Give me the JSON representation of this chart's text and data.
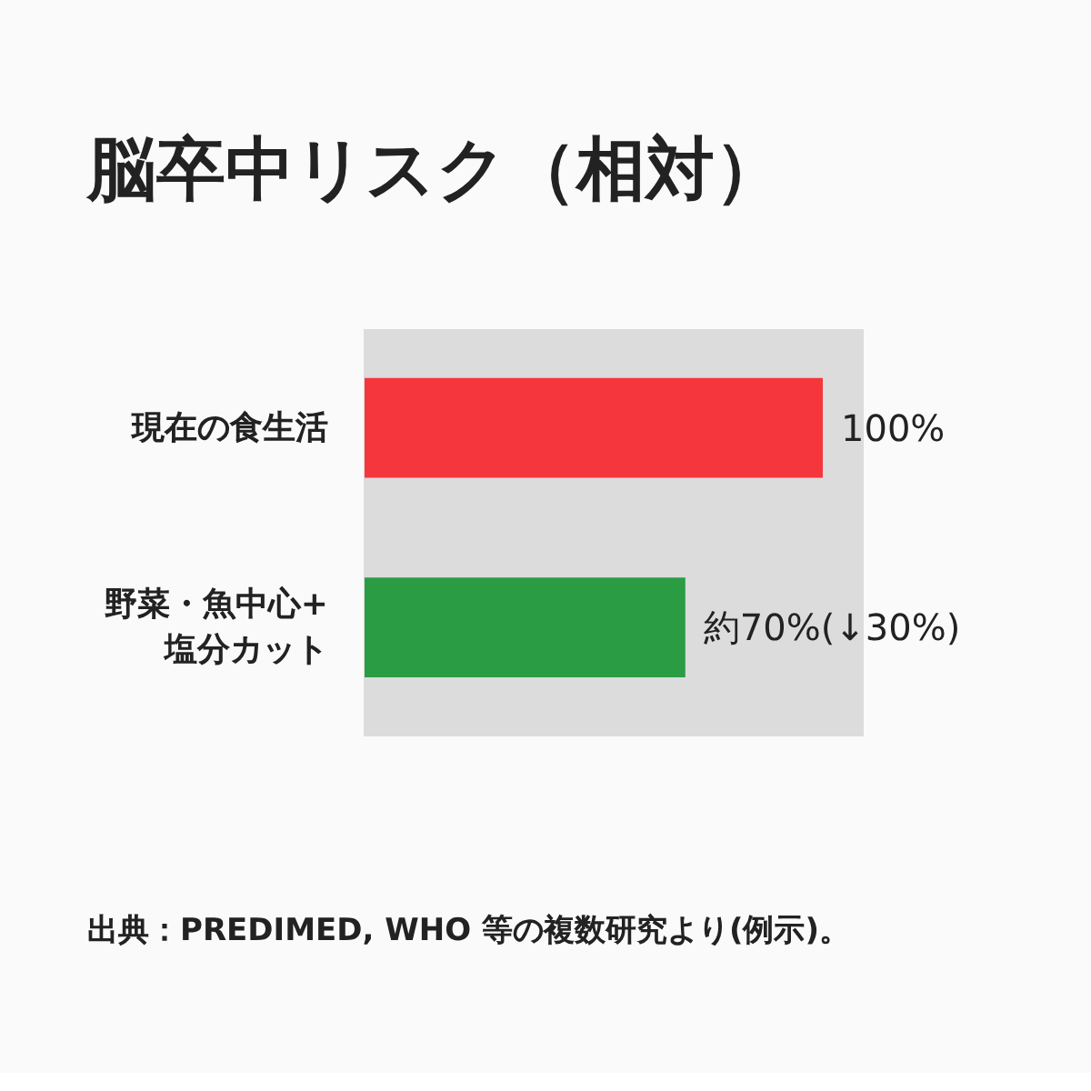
{
  "chart_data": {
    "type": "bar",
    "orientation": "horizontal",
    "title": "脳卒中リスク（相対）",
    "categories": [
      "現在の食生活",
      "野菜・魚中心+塩分カット"
    ],
    "values": [
      100,
      70
    ],
    "colors": [
      "#f5373d",
      "#2a9d44"
    ],
    "value_labels": [
      "100%",
      "約70%(↓30%)"
    ],
    "annotations": [
      "出典：PREDIMED, WHO 等の複数研究より(例示)。"
    ],
    "grid": false
  }
}
